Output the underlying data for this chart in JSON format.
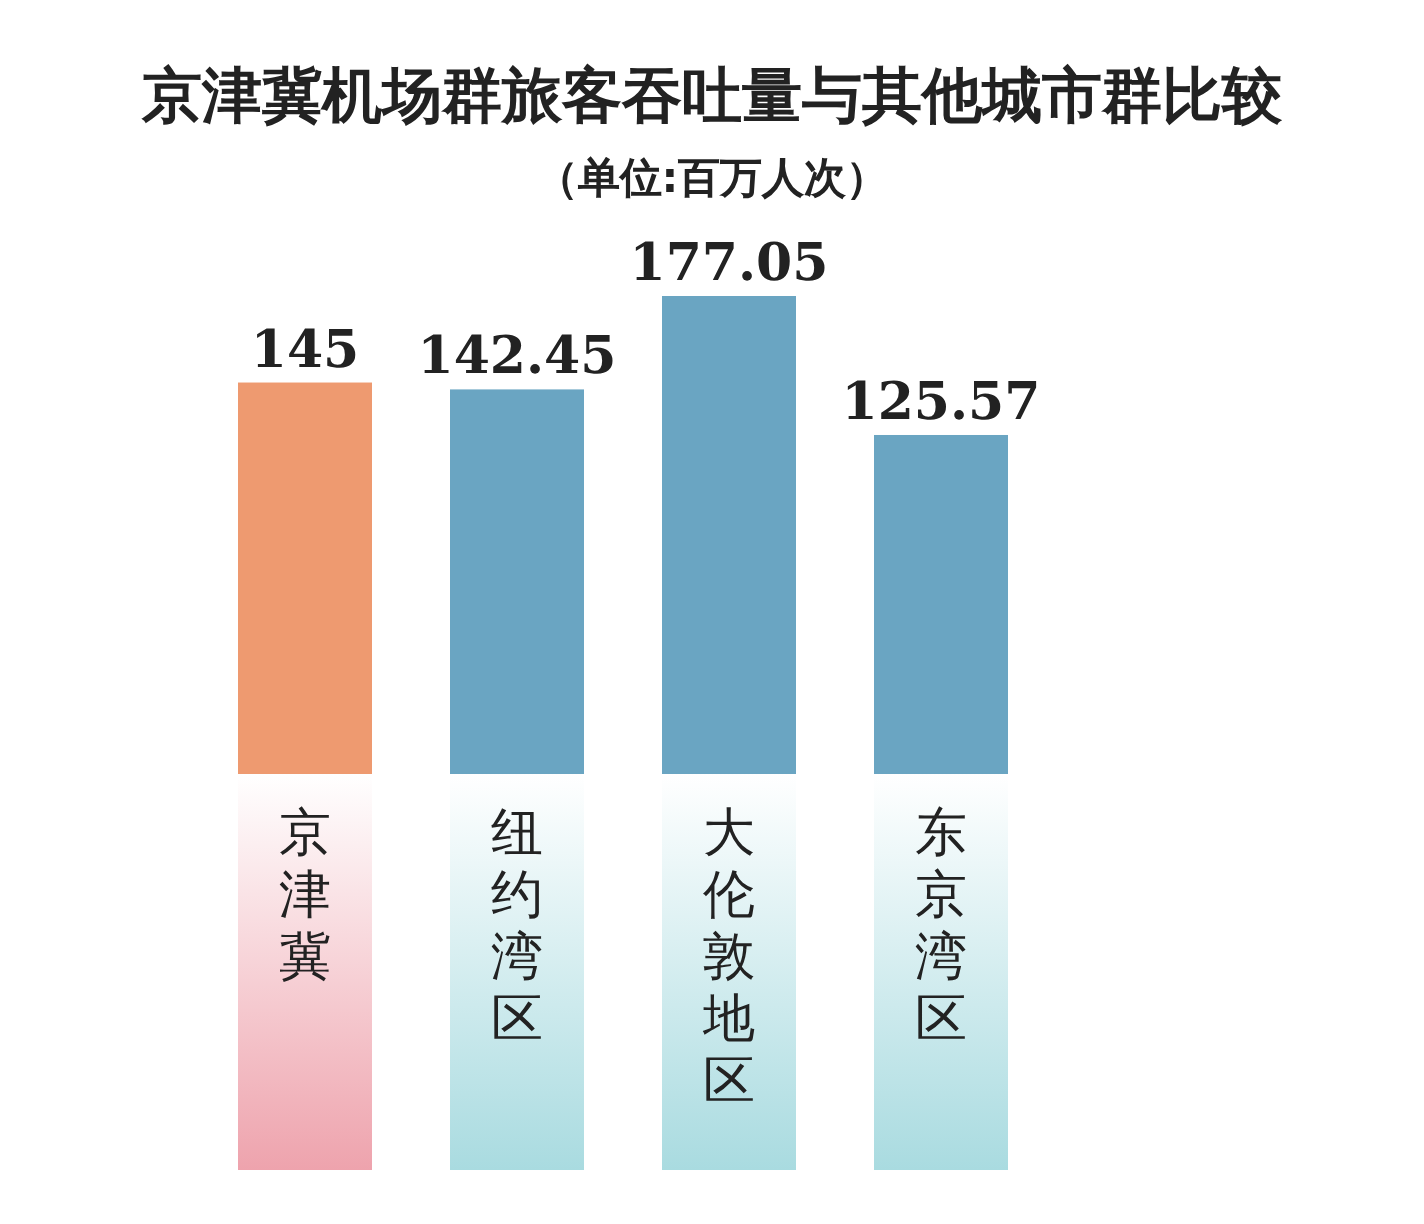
{
  "chart_data": {
    "type": "bar",
    "title": "京津冀机场群旅客吞吐量与其他城市群比较",
    "subtitle": "（单位:百万人次）",
    "categories": [
      "京津冀",
      "纽约湾区",
      "大伦敦地区",
      "东京湾区"
    ],
    "values": [
      145,
      142.45,
      177.05,
      125.57
    ],
    "value_labels": [
      "145",
      "142.45",
      "177.05",
      "125.57"
    ],
    "colors": [
      "#ee9a70",
      "#6aa5c2",
      "#6aa5c2",
      "#6aa5c2"
    ]
  }
}
